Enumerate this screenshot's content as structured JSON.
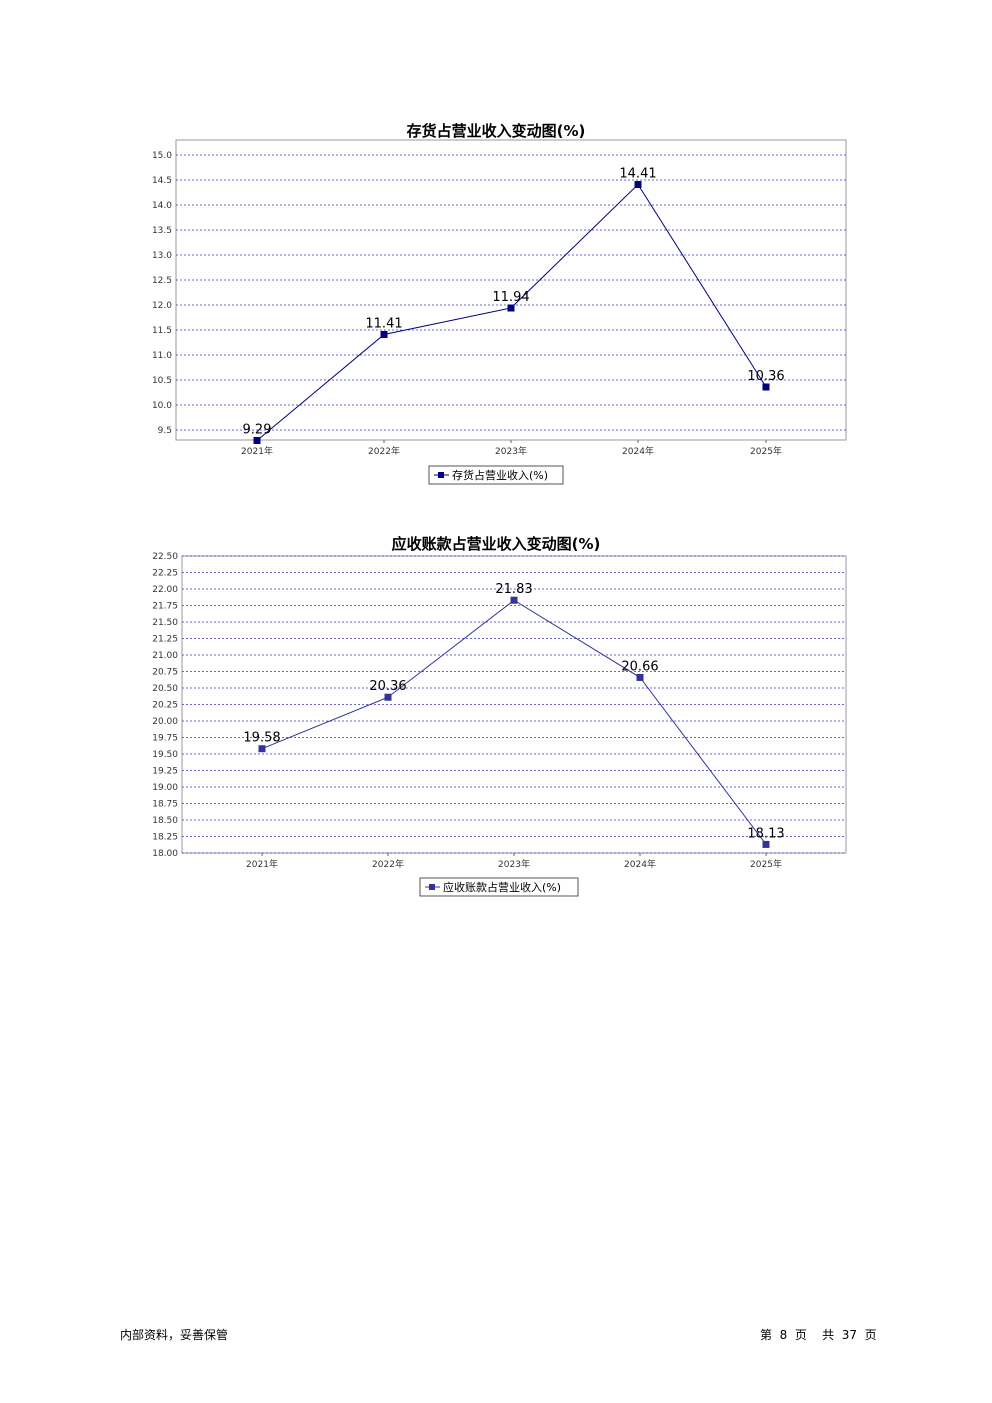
{
  "chart_data": [
    {
      "type": "line",
      "title": "存货占营业收入变动图(%)",
      "categories": [
        "2021年",
        "2022年",
        "2023年",
        "2024年",
        "2025年"
      ],
      "series": [
        {
          "name": "存货占营业收入(%)",
          "values": [
            9.29,
            11.41,
            11.94,
            14.41,
            10.36
          ]
        }
      ],
      "data_labels": [
        "9.29",
        "11.41",
        "11.94",
        "14.41",
        "10.36"
      ],
      "ylim": [
        9.3,
        15.3
      ],
      "yticks": [
        "9.5",
        "10.0",
        "10.5",
        "11.0",
        "11.5",
        "12.0",
        "12.5",
        "13.0",
        "13.5",
        "14.0",
        "14.5",
        "15.0"
      ],
      "ytick_values": [
        9.5,
        10.0,
        10.5,
        11.0,
        11.5,
        12.0,
        12.5,
        13.0,
        13.5,
        14.0,
        14.5,
        15.0
      ],
      "grid": true,
      "legend": "bottom-center",
      "colors": {
        "line": "#000080",
        "marker": "#000080",
        "grid": "#3333cc"
      }
    },
    {
      "type": "line",
      "title": "应收账款占营业收入变动图(%)",
      "categories": [
        "2021年",
        "2022年",
        "2023年",
        "2024年",
        "2025年"
      ],
      "series": [
        {
          "name": "应收账款占营业收入(%)",
          "values": [
            19.58,
            20.36,
            21.83,
            20.66,
            18.13
          ]
        }
      ],
      "data_labels": [
        "19.58",
        "20.36",
        "21.83",
        "20.66",
        "18.13"
      ],
      "ylim": [
        18.0,
        22.5
      ],
      "yticks": [
        "22.50",
        "22.25",
        "22.00",
        "21.75",
        "21.50",
        "21.25",
        "21.00",
        "20.75",
        "20.50",
        "20.25",
        "20.00",
        "19.75",
        "19.50",
        "19.25",
        "19.00",
        "18.75",
        "18.50",
        "18.25",
        "18.00"
      ],
      "ytick_values": [
        22.5,
        22.25,
        22.0,
        21.75,
        21.5,
        21.25,
        21.0,
        20.75,
        20.5,
        20.25,
        20.0,
        19.75,
        19.5,
        19.25,
        19.0,
        18.75,
        18.5,
        18.25,
        18.0
      ],
      "grid": true,
      "legend": "bottom-center",
      "colors": {
        "line": "#333399",
        "marker": "#333399",
        "grid": "#3333cc"
      }
    }
  ],
  "footer": {
    "left": "内部资料，妥善保管",
    "right": "第  8  页    共  37  页"
  }
}
